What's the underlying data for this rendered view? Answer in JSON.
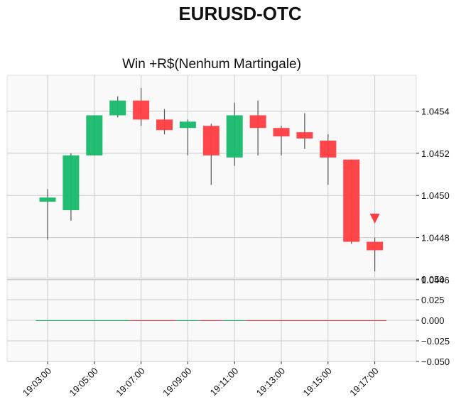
{
  "title": "EURUSD-OTC",
  "chart_data": {
    "type": "candlestick",
    "title": "EURUSD-OTC",
    "subtitle": "Win +R$(Nenhum Martingale)",
    "xlabel": "",
    "ylabel": "",
    "grid": true,
    "colors": {
      "up": "#16b96a",
      "down": "#ff3c41",
      "wick": "#555555",
      "marker": "#ff3c41",
      "panel_bg": "#f9f9f9",
      "grid": "#cccccc"
    },
    "x_ticks": [
      "19:03:00",
      "19:05:00",
      "19:07:00",
      "19:09:00",
      "19:11:00",
      "19:13:00",
      "19:15:00",
      "19:17:00"
    ],
    "price_axis": {
      "ylim": [
        1.04461,
        1.04557
      ],
      "ticks": [
        "1.0446",
        "1.0448",
        "1.0450",
        "1.0452",
        "1.0454"
      ]
    },
    "volume_axis": {
      "ylim": [
        -0.05,
        0.05
      ],
      "ticks": [
        "0.050",
        "0.025",
        "0.000",
        "−0.025",
        "−0.050"
      ]
    },
    "candles": [
      {
        "time": "19:03:00",
        "open": 1.04497,
        "high": 1.04503,
        "low": 1.04479,
        "close": 1.04499
      },
      {
        "time": "19:04:00",
        "open": 1.04493,
        "high": 1.0452,
        "low": 1.04488,
        "close": 1.04519
      },
      {
        "time": "19:05:00",
        "open": 1.04519,
        "high": 1.04538,
        "low": 1.04519,
        "close": 1.04538
      },
      {
        "time": "19:06:00",
        "open": 1.04538,
        "high": 1.04547,
        "low": 1.04537,
        "close": 1.04545
      },
      {
        "time": "19:07:00",
        "open": 1.04545,
        "high": 1.04551,
        "low": 1.04533,
        "close": 1.04536
      },
      {
        "time": "19:08:00",
        "open": 1.04536,
        "high": 1.04541,
        "low": 1.04529,
        "close": 1.04531
      },
      {
        "time": "19:09:00",
        "open": 1.04532,
        "high": 1.04536,
        "low": 1.04519,
        "close": 1.04535
      },
      {
        "time": "19:10:00",
        "open": 1.04533,
        "high": 1.04534,
        "low": 1.04505,
        "close": 1.04519
      },
      {
        "time": "19:11:00",
        "open": 1.04518,
        "high": 1.04544,
        "low": 1.04514,
        "close": 1.04538
      },
      {
        "time": "19:12:00",
        "open": 1.04538,
        "high": 1.04545,
        "low": 1.04519,
        "close": 1.04532
      },
      {
        "time": "19:13:00",
        "open": 1.04532,
        "high": 1.04533,
        "low": 1.04519,
        "close": 1.04528
      },
      {
        "time": "19:14:00",
        "open": 1.0453,
        "high": 1.04539,
        "low": 1.04522,
        "close": 1.04527
      },
      {
        "time": "19:15:00",
        "open": 1.04526,
        "high": 1.04529,
        "low": 1.04505,
        "close": 1.04518
      },
      {
        "time": "19:16:00",
        "open": 1.04517,
        "high": 1.04517,
        "low": 1.04477,
        "close": 1.04478
      },
      {
        "time": "19:17:00",
        "open": 1.04478,
        "high": 1.0448,
        "low": 1.04464,
        "close": 1.04474
      }
    ],
    "volumes": [
      0,
      0,
      0,
      0,
      0,
      0,
      0,
      0,
      0,
      0,
      0,
      0,
      0,
      0,
      0
    ],
    "markers": [
      {
        "time": "19:17:00",
        "price": 1.04489,
        "shape": "triangle-down"
      }
    ]
  }
}
